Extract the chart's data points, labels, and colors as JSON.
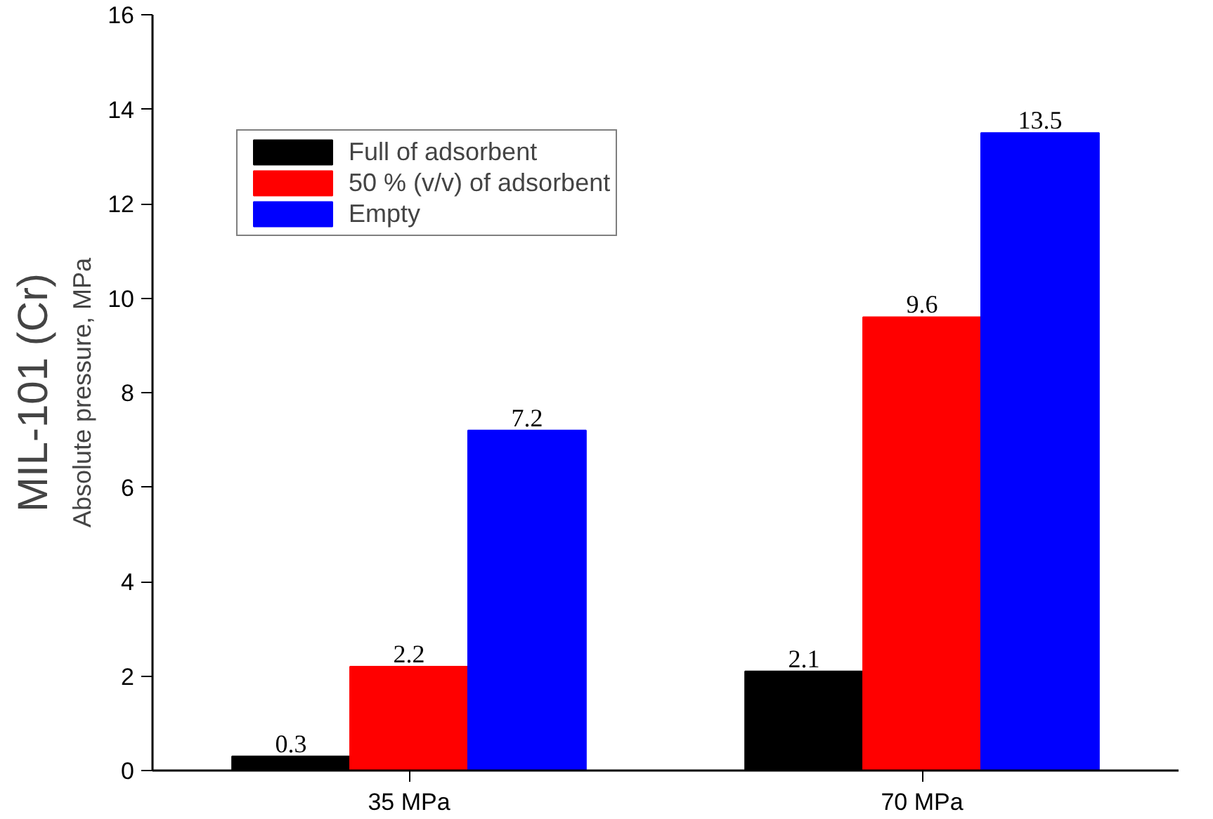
{
  "chart_data": {
    "type": "bar",
    "title": "MIL-101 (Cr)",
    "ylabel": "Absolute pressure, MPa",
    "categories": [
      "35 MPa",
      "70 MPa"
    ],
    "series": [
      {
        "name": "Full of adsorbent",
        "color": "#000000",
        "values": [
          0.3,
          2.1
        ]
      },
      {
        "name": "50 % (v/v) of adsorbent",
        "color": "#ff0000",
        "values": [
          2.2,
          9.6
        ]
      },
      {
        "name": "Empty",
        "color": "#0000ff",
        "values": [
          7.2,
          13.5
        ]
      }
    ],
    "ylim": [
      0,
      16
    ],
    "yticks": [
      0,
      2,
      4,
      6,
      8,
      10,
      12,
      14,
      16
    ],
    "grid": false,
    "legend": "top",
    "data_labels": true
  }
}
